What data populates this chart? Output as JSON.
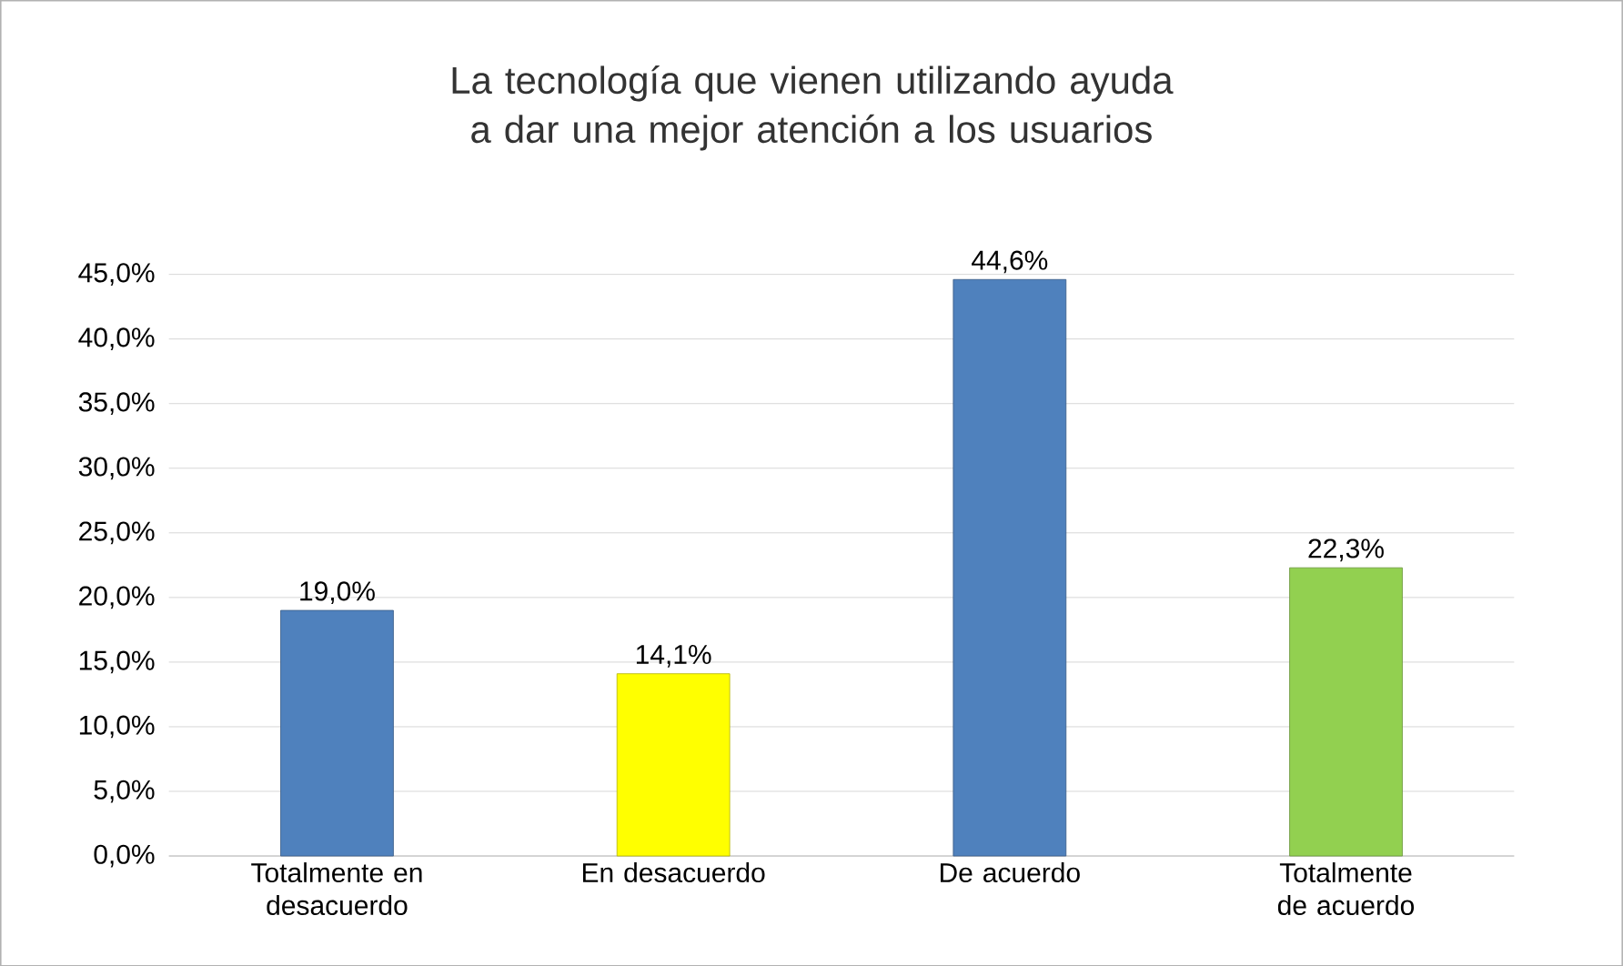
{
  "chart_data": {
    "type": "bar",
    "title": "La tecnología que vienen utilizando ayuda a dar una mejor atención a los usuarios",
    "categories": [
      "Totalmente en desacuerdo",
      "En desacuerdo",
      "De acuerdo",
      "Totalmente de acuerdo"
    ],
    "values": [
      19.0,
      14.1,
      44.6,
      22.3
    ],
    "colors": [
      "#4f81bd",
      "#ffff00",
      "#4f81bd",
      "#92d050"
    ],
    "value_labels": [
      "19,0%",
      "14,1%",
      "44,6%",
      "22,3%"
    ],
    "ylim": [
      0,
      45
    ],
    "yticks": [
      {
        "value": 0,
        "label": "0,0%"
      },
      {
        "value": 5,
        "label": "5,0%"
      },
      {
        "value": 10,
        "label": "10,0%"
      },
      {
        "value": 15,
        "label": "15,0%"
      },
      {
        "value": 20,
        "label": "20,0%"
      },
      {
        "value": 25,
        "label": "25,0%"
      },
      {
        "value": 30,
        "label": "30,0%"
      },
      {
        "value": 35,
        "label": "35,0%"
      },
      {
        "value": 40,
        "label": "40,0%"
      },
      {
        "value": 45,
        "label": "45,0%"
      }
    ],
    "grid": "y",
    "legend": false
  }
}
